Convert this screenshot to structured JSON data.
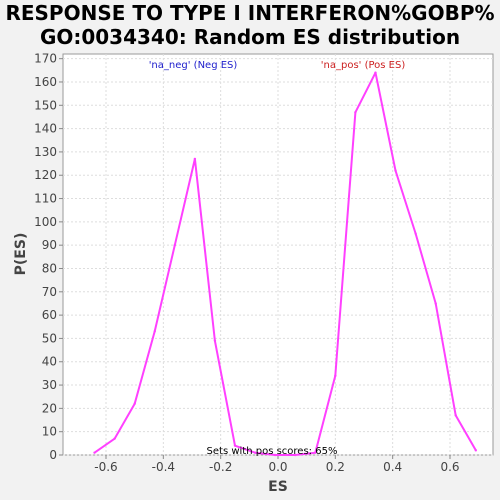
{
  "chart_data": {
    "type": "line",
    "title_line1": "RESPONSE TO TYPE I INTERFERON%GOBP%",
    "title_line2": "GO:0034340: Random ES distribution",
    "xlabel": "ES",
    "ylabel": "P(ES)",
    "xlim": [
      -0.75,
      0.75
    ],
    "ylim": [
      0,
      172
    ],
    "xticks": [
      "-0.6",
      "-0.4",
      "-0.2",
      "0.0",
      "0.2",
      "0.4",
      "0.6"
    ],
    "xtick_values": [
      -0.6,
      -0.4,
      -0.2,
      0.0,
      0.2,
      0.4,
      0.6
    ],
    "yticks": [
      0,
      10,
      20,
      30,
      40,
      50,
      60,
      70,
      80,
      90,
      100,
      110,
      120,
      130,
      140,
      150,
      160,
      170
    ],
    "grid": true,
    "line_color": "#ff40ff",
    "series": [
      {
        "x": [
          -0.64,
          -0.57,
          -0.5,
          -0.43,
          -0.36,
          -0.29,
          -0.22,
          -0.15,
          -0.08,
          -0.01,
          0.06,
          0.13,
          0.2,
          0.27,
          0.34,
          0.41,
          0.48,
          0.55,
          0.62,
          0.69
        ],
        "y": [
          1,
          7,
          22,
          53,
          90,
          127,
          49,
          4,
          1,
          0,
          0,
          1,
          34,
          147,
          164,
          122,
          95,
          65,
          17,
          2
        ]
      }
    ],
    "annotations": {
      "neg_label": "'na_neg' (Neg ES)",
      "neg_color": "#2020cc",
      "pos_label": "'na_pos' (Pos ES)",
      "pos_color": "#cc2020",
      "bottom_text": "Sets with pos scores: 65%"
    }
  }
}
